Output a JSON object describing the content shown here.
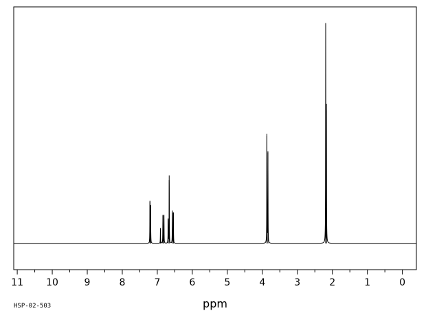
{
  "chart_data": {
    "type": "line",
    "title": "",
    "xlabel": "ppm",
    "ylabel": "",
    "sample_code": "HSP-02-503",
    "x_reversed": true,
    "xlim": [
      11.1,
      -0.4
    ],
    "ylim": [
      -0.12,
      1.08
    ],
    "major_ticks": [
      11,
      10,
      9,
      8,
      7,
      6,
      5,
      4,
      3,
      2,
      1,
      0
    ],
    "tick_labels": [
      "11",
      "10",
      "9",
      "8",
      "7",
      "6",
      "5",
      "4",
      "3",
      "2",
      "1",
      "0"
    ],
    "minor_tick_step": 0.5,
    "grid": false,
    "line_color": "#000000",
    "series": [
      {
        "peaks": [
          {
            "x": 7.21,
            "y": 0.19
          },
          {
            "x": 7.19,
            "y": 0.17
          },
          {
            "x": 6.91,
            "y": 0.07
          },
          {
            "x": 6.84,
            "y": 0.13
          },
          {
            "x": 6.81,
            "y": 0.13
          },
          {
            "x": 6.69,
            "y": 0.11
          },
          {
            "x": 6.66,
            "y": 0.31
          },
          {
            "x": 6.57,
            "y": 0.15
          },
          {
            "x": 6.54,
            "y": 0.14
          },
          {
            "x": 3.87,
            "y": 0.5
          },
          {
            "x": 3.84,
            "y": 0.42
          },
          {
            "x": 2.19,
            "y": 1.0
          },
          {
            "x": 2.17,
            "y": 0.61
          }
        ]
      }
    ]
  }
}
